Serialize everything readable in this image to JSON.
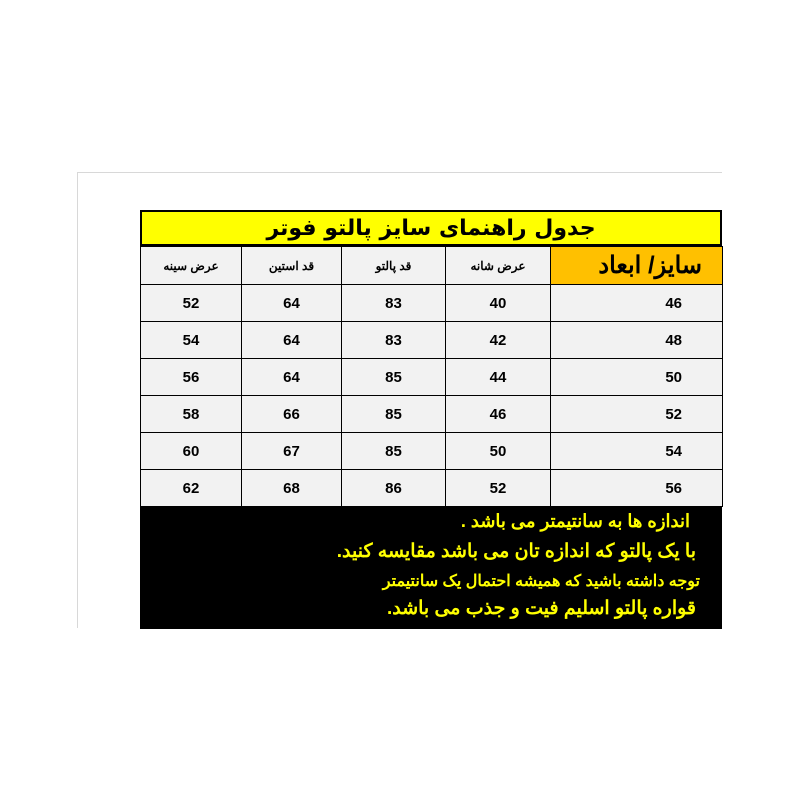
{
  "title": "جدول راهنمای سایز پالتو فوتر",
  "headers": [
    "سایز/ ابعاد",
    "عرض شانه",
    "قد پالتو",
    "قد استین",
    "عرض سینه"
  ],
  "rows": [
    {
      "size": "46",
      "shoulder": "40",
      "length": "83",
      "sleeve": "64",
      "chest": "52"
    },
    {
      "size": "48",
      "shoulder": "42",
      "length": "83",
      "sleeve": "64",
      "chest": "54"
    },
    {
      "size": "50",
      "shoulder": "44",
      "length": "85",
      "sleeve": "64",
      "chest": "56"
    },
    {
      "size": "52",
      "shoulder": "46",
      "length": "85",
      "sleeve": "66",
      "chest": "58"
    },
    {
      "size": "54",
      "shoulder": "50",
      "length": "85",
      "sleeve": "67",
      "chest": "60"
    },
    {
      "size": "56",
      "shoulder": "52",
      "length": "86",
      "sleeve": "68",
      "chest": "62"
    }
  ],
  "notes": [
    "اندازه ها به سانتیمتر می باشد .",
    "با یک پالتو که اندازه تان می باشد مقایسه کنید.",
    "توجه داشته باشید که همیشه احتمال یک سانتیمتر",
    "قواره پالتو اسلیم فیت و جذب می باشد."
  ],
  "colors": {
    "title_bg": "#ffff00",
    "size_bg": "#ffc000",
    "notes_bg": "#000000",
    "notes_text": "#ffff00"
  }
}
